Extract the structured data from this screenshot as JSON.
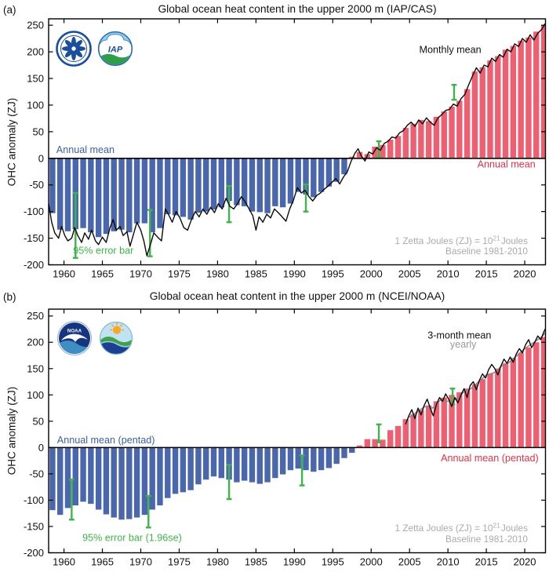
{
  "figure": {
    "panels": [
      {
        "id": "a",
        "corner_label": "(a)",
        "title": "Global ocean heat content in the upper 2000 m (IAP/CAS)",
        "ylabel": "OHC anomaly (ZJ)",
        "logos": [
          "cas-logo",
          "iap-logo"
        ]
      },
      {
        "id": "b",
        "corner_label": "(b)",
        "title": "Global ocean heat content in the upper 2000 m (NCEI/NOAA)",
        "ylabel": "OHC anomaly (ZJ)",
        "logos": [
          "noaa-logo",
          "ncei-logo"
        ]
      }
    ],
    "colors": {
      "bar_negative": "#4a66ad",
      "bar_positive": "#ee5f72",
      "error_bar": "#3db549",
      "monthly_line": "#0a0a0a",
      "yearly_line": "#8a8a8a",
      "blue_text": "#3a5fa8",
      "red_text": "#e23247",
      "gray_text": "#ababab"
    }
  },
  "chart_data": [
    {
      "id": "a",
      "type": "bar",
      "title": "Global ocean heat content in the upper 2000 m (IAP/CAS)",
      "xlabel": "",
      "ylabel": "OHC anomaly (ZJ)",
      "xlim": [
        1958.0,
        2022.7
      ],
      "ylim": [
        -200,
        262
      ],
      "x_ticks": [
        1960,
        1965,
        1970,
        1975,
        1980,
        1985,
        1990,
        1995,
        2000,
        2005,
        2010,
        2015,
        2020
      ],
      "y_ticks": [
        -200,
        -150,
        -100,
        -50,
        0,
        50,
        100,
        150,
        200,
        250
      ],
      "grid": false,
      "bars": {
        "name": "Annual mean",
        "start_year": 1958,
        "values": [
          -103,
          -134,
          -137,
          -133,
          -131,
          -139,
          -148,
          -142,
          -137,
          -134,
          -139,
          -122,
          -122,
          -139,
          -131,
          -105,
          -107,
          -110,
          -115,
          -102,
          -100,
          -96,
          -92,
          -80,
          -88,
          -90,
          -100,
          -101,
          -103,
          -90,
          -92,
          -85,
          -63,
          -68,
          -73,
          -63,
          -53,
          -44,
          -30,
          3,
          12,
          8,
          22,
          25,
          35,
          42,
          57,
          65,
          72,
          70,
          78,
          88,
          97,
          108,
          130,
          163,
          171,
          184,
          192,
          204,
          211,
          221,
          227,
          238,
          250
        ]
      },
      "lines": [
        {
          "name": "Monthly mean",
          "color": "#0a0a0a",
          "width": 1.4,
          "x": [
            1958.0,
            1958.4,
            1958.8,
            1959.3,
            1959.7,
            1960.1,
            1960.5,
            1961.0,
            1961.4,
            1961.8,
            1962.3,
            1962.7,
            1963.2,
            1963.6,
            1964.1,
            1964.5,
            1965.0,
            1965.5,
            1966.0,
            1966.4,
            1966.8,
            1967.3,
            1967.7,
            1968.2,
            1968.6,
            1969.1,
            1969.5,
            1970.0,
            1970.4,
            1970.8,
            1971.3,
            1971.7,
            1972.2,
            1972.7,
            1973.2,
            1973.6,
            1974.1,
            1974.6,
            1975.1,
            1975.6,
            1976.1,
            1976.6,
            1977.1,
            1977.6,
            1978.1,
            1978.6,
            1979.1,
            1979.6,
            1980.1,
            1980.6,
            1981.1,
            1981.6,
            1982.1,
            1982.6,
            1983.1,
            1983.6,
            1984.1,
            1984.6,
            1985.0,
            1985.4,
            1985.9,
            1986.4,
            1986.9,
            1987.4,
            1987.9,
            1988.4,
            1988.9,
            1989.4,
            1989.9,
            1990.4,
            1990.9,
            1991.4,
            1991.9,
            1992.4,
            1992.9,
            1993.4,
            1993.9,
            1994.4,
            1994.9,
            1995.4,
            1995.9,
            1996.4,
            1996.9,
            1997.4,
            1997.9,
            1998.3,
            1998.7,
            1999.2,
            1999.7,
            2000.2,
            2000.7,
            2001.2,
            2001.7,
            2002.2,
            2002.7,
            2003.2,
            2003.7,
            2004.2,
            2004.7,
            2005.2,
            2005.7,
            2006.2,
            2006.7,
            2007.2,
            2007.7,
            2008.2,
            2008.7,
            2009.2,
            2009.7,
            2010.2,
            2010.7,
            2011.2,
            2011.7,
            2012.2,
            2012.7,
            2013.2,
            2013.7,
            2014.2,
            2014.7,
            2015.2,
            2015.7,
            2016.2,
            2016.7,
            2017.2,
            2017.7,
            2018.2,
            2018.7,
            2019.2,
            2019.7,
            2020.2,
            2020.7,
            2021.2,
            2021.7,
            2022.2,
            2022.6,
            2022.95
          ],
          "y": [
            -85,
            -120,
            -140,
            -150,
            -128,
            -145,
            -155,
            -150,
            -130,
            -145,
            -158,
            -140,
            -152,
            -135,
            -155,
            -162,
            -148,
            -158,
            -130,
            -115,
            -135,
            -128,
            -145,
            -138,
            -165,
            -140,
            -120,
            -135,
            -155,
            -183,
            -160,
            -140,
            -148,
            -155,
            -95,
            -105,
            -120,
            -100,
            -112,
            -130,
            -135,
            -115,
            -100,
            -110,
            -95,
            -105,
            -92,
            -102,
            -85,
            -95,
            -75,
            -90,
            -95,
            -85,
            -72,
            -82,
            -95,
            -108,
            -135,
            -110,
            -120,
            -105,
            -112,
            -95,
            -102,
            -110,
            -118,
            -95,
            -78,
            -55,
            -65,
            -60,
            -72,
            -80,
            -70,
            -65,
            -58,
            -52,
            -45,
            -38,
            -48,
            -35,
            -25,
            -5,
            10,
            18,
            5,
            -5,
            12,
            8,
            20,
            15,
            28,
            32,
            40,
            38,
            48,
            52,
            62,
            68,
            60,
            72,
            65,
            76,
            68,
            62,
            76,
            82,
            90,
            92,
            102,
            98,
            112,
            120,
            138,
            155,
            170,
            160,
            175,
            172,
            188,
            182,
            195,
            190,
            205,
            200,
            215,
            210,
            225,
            218,
            232,
            222,
            235,
            242,
            252,
            255
          ]
        }
      ],
      "error_bars": {
        "label": "95% error bar",
        "points": [
          {
            "x": 1961.5,
            "low": -187,
            "high": -65
          },
          {
            "x": 1971.2,
            "low": -184,
            "high": -97
          },
          {
            "x": 1981.5,
            "low": -120,
            "high": -52
          },
          {
            "x": 1991.5,
            "low": -100,
            "high": -49
          },
          {
            "x": 2001.0,
            "low": 3,
            "high": 32
          },
          {
            "x": 2010.8,
            "low": 110,
            "high": 138
          }
        ]
      },
      "labels": [
        {
          "name": "monthly-mean-label",
          "text": "Monthly mean",
          "x": 2010.3,
          "v": 198,
          "color": "#111111",
          "anchor": "middle"
        },
        {
          "name": "annual-mean-label-blue",
          "text": "Annual mean",
          "x": 1959.0,
          "v": 10,
          "color": "#3a5fa8",
          "anchor": "start"
        },
        {
          "name": "annual-mean-label-red",
          "text": "Annual mean",
          "x": 2021.4,
          "v": -17,
          "color": "#e23247",
          "anchor": "end"
        },
        {
          "name": "error-bar-label",
          "text": "95% error bar",
          "x": 1961.2,
          "v": -179,
          "color": "#3db549",
          "anchor": "start"
        }
      ],
      "footnote": {
        "line1_pre": "1 Zetta Joules (ZJ) = 10",
        "line1_sup": "21",
        "line1_post": "Joules",
        "line2": "Baseline 1981-2010",
        "x": 2020.4,
        "v_line1": -161,
        "v_line2": -180,
        "color": "#ababab"
      }
    },
    {
      "id": "b",
      "type": "bar",
      "title": "Global ocean heat content in the upper 2000 m (NCEI/NOAA)",
      "xlabel": "",
      "ylabel": "OHC anomaly (ZJ)",
      "xlim": [
        1958.0,
        2022.7
      ],
      "ylim": [
        -200,
        263
      ],
      "x_ticks": [
        1960,
        1965,
        1970,
        1975,
        1980,
        1985,
        1990,
        1995,
        2000,
        2005,
        2010,
        2015,
        2020
      ],
      "y_ticks": [
        -200,
        -150,
        -100,
        -50,
        0,
        50,
        100,
        150,
        200,
        250
      ],
      "grid": false,
      "bars": {
        "name": "Annual mean (pentad)",
        "start_year": 1958,
        "values": [
          -119,
          -128,
          -115,
          -110,
          -103,
          -107,
          -118,
          -127,
          -133,
          -137,
          -136,
          -133,
          -128,
          -118,
          -110,
          -96,
          -88,
          -85,
          -81,
          -70,
          -61,
          -55,
          -58,
          -61,
          -66,
          -63,
          -66,
          -69,
          -66,
          -58,
          -51,
          -43,
          -40,
          -43,
          -46,
          -43,
          -39,
          -31,
          -20,
          -10,
          4,
          16,
          16,
          15,
          33,
          41,
          54,
          63,
          71,
          80,
          88,
          95,
          100,
          105,
          112,
          120,
          130,
          140,
          150,
          160,
          170,
          180,
          190,
          200,
          210
        ]
      },
      "lines": [
        {
          "name": "yearly",
          "color": "#8a8a8a",
          "width": 1.6,
          "x": [
            2005,
            2006,
            2007,
            2008,
            2009,
            2010,
            2011,
            2012,
            2013,
            2014,
            2015,
            2016,
            2017,
            2018,
            2019,
            2020,
            2021,
            2022,
            2022.7
          ],
          "y": [
            58,
            68,
            78,
            75,
            90,
            88,
            92,
            105,
            112,
            125,
            138,
            142,
            155,
            162,
            175,
            188,
            198,
            208,
            218
          ]
        },
        {
          "name": "3-month mean",
          "color": "#0a0a0a",
          "width": 1.4,
          "x": [
            2004.5,
            2004.9,
            2005.3,
            2005.7,
            2006.1,
            2006.5,
            2006.9,
            2007.3,
            2007.7,
            2008.1,
            2008.5,
            2008.9,
            2009.3,
            2009.7,
            2010.1,
            2010.5,
            2010.9,
            2011.3,
            2011.7,
            2012.1,
            2012.5,
            2012.9,
            2013.3,
            2013.7,
            2014.1,
            2014.5,
            2014.9,
            2015.3,
            2015.7,
            2016.1,
            2016.5,
            2016.9,
            2017.3,
            2017.7,
            2018.1,
            2018.5,
            2018.9,
            2019.3,
            2019.7,
            2020.1,
            2020.5,
            2020.9,
            2021.3,
            2021.7,
            2022.1,
            2022.5,
            2022.9
          ],
          "y": [
            45,
            60,
            72,
            55,
            75,
            62,
            80,
            92,
            75,
            60,
            82,
            95,
            88,
            102,
            92,
            78,
            95,
            85,
            100,
            112,
            95,
            118,
            125,
            110,
            128,
            140,
            132,
            148,
            158,
            150,
            138,
            155,
            168,
            160,
            172,
            162,
            178,
            188,
            180,
            195,
            205,
            190,
            200,
            212,
            205,
            220,
            232
          ]
        }
      ],
      "error_bars": {
        "label": "95% error bar (1.96se)",
        "points": [
          {
            "x": 1961.0,
            "low": -137,
            "high": -61
          },
          {
            "x": 1971.0,
            "low": -152,
            "high": -92
          },
          {
            "x": 1981.5,
            "low": -98,
            "high": -33
          },
          {
            "x": 1991.0,
            "low": -72,
            "high": -15
          },
          {
            "x": 2001.0,
            "low": 10,
            "high": 44
          },
          {
            "x": 2010.6,
            "low": 82,
            "high": 112
          }
        ]
      },
      "labels": [
        {
          "name": "three-month-mean-label",
          "text": "3-month mean",
          "x": 2011.5,
          "v": 207,
          "color": "#111111",
          "anchor": "middle"
        },
        {
          "name": "yearly-label",
          "text": "yearly",
          "x": 2012.0,
          "v": 190,
          "color": "#999999",
          "anchor": "middle"
        },
        {
          "name": "annual-mean-pentad-label-blue",
          "text": "Annual mean (pentad)",
          "x": 1959.1,
          "v": 8,
          "color": "#3a5fa8",
          "anchor": "start"
        },
        {
          "name": "annual-mean-pentad-label-red",
          "text": "Annual mean (pentad)",
          "x": 2021.8,
          "v": -26,
          "color": "#e23247",
          "anchor": "end"
        },
        {
          "name": "error-bar-label",
          "text": "95% error bar (1.96se)",
          "x": 1962.4,
          "v": -178,
          "color": "#3db549",
          "anchor": "start"
        }
      ],
      "footnote": {
        "line1_pre": "1 Zetta Joules (ZJ) = 10",
        "line1_sup": "21",
        "line1_post": "Joules",
        "line2": "Baseline 1981-2010",
        "x": 2020.4,
        "v_line1": -159,
        "v_line2": -180,
        "color": "#ababab"
      }
    }
  ]
}
